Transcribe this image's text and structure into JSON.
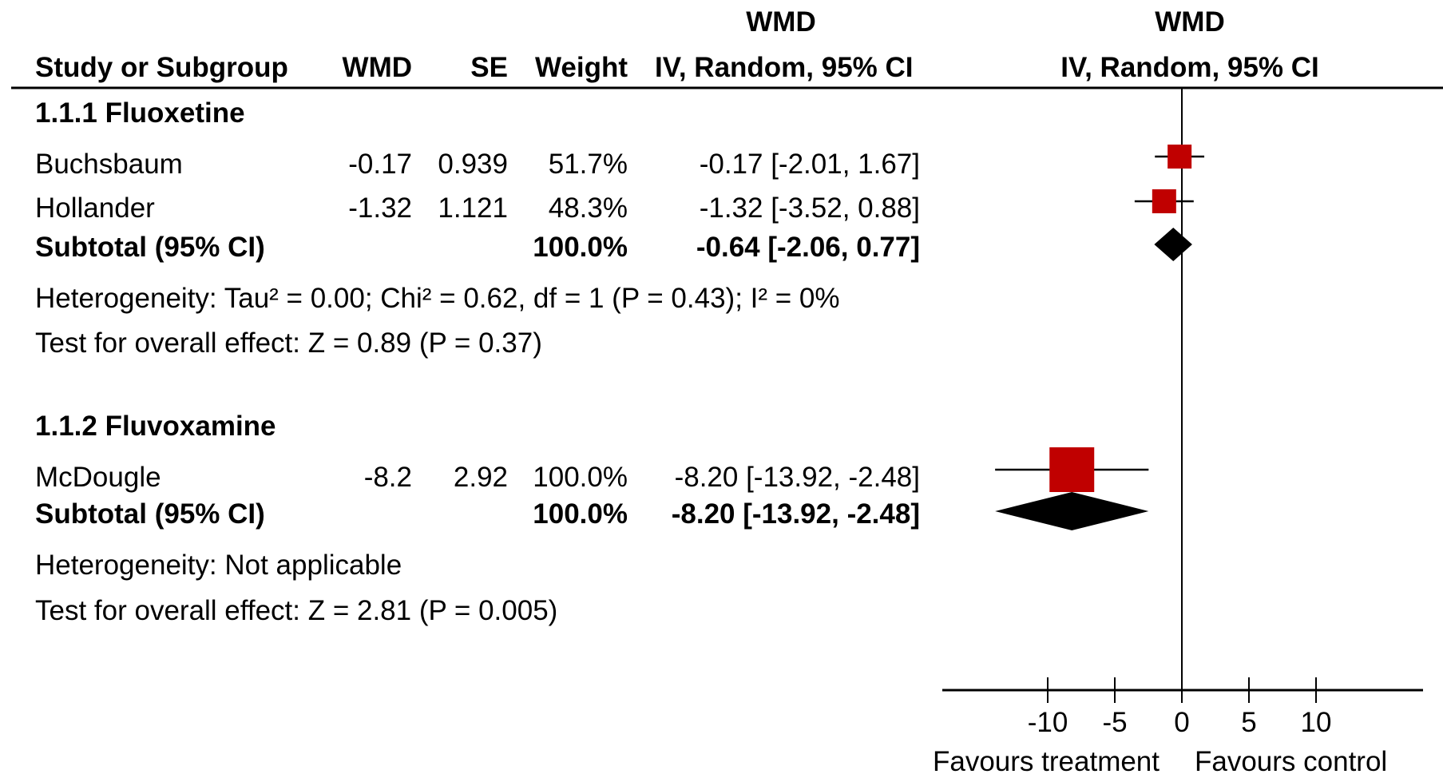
{
  "header": {
    "col_study": "Study or Subgroup",
    "col_wmd": "WMD",
    "col_se": "SE",
    "col_weight": "Weight",
    "col_ci_top": "WMD",
    "col_ci_bottom": "IV, Random, 95% CI",
    "plot_top": "WMD",
    "plot_bottom": "IV, Random, 95% CI"
  },
  "subgroups": [
    {
      "title": "1.1.1 Fluoxetine",
      "studies": [
        {
          "name": "Buchsbaum",
          "wmd": "-0.17",
          "se": "0.939",
          "weight": "51.7%",
          "ci": "-0.17 [-2.01, 1.67]"
        },
        {
          "name": "Hollander",
          "wmd": "-1.32",
          "se": "1.121",
          "weight": "48.3%",
          "ci": "-1.32 [-3.52, 0.88]"
        }
      ],
      "subtotal": {
        "label": "Subtotal (95% CI)",
        "weight": "100.0%",
        "ci": "-0.64 [-2.06, 0.77]"
      },
      "heterogeneity": "Heterogeneity: Tau² = 0.00; Chi² = 0.62, df = 1 (P = 0.43); I² = 0%",
      "overall": "Test for overall effect: Z = 0.89 (P = 0.37)"
    },
    {
      "title": "1.1.2 Fluvoxamine",
      "studies": [
        {
          "name": "McDougle",
          "wmd": "-8.2",
          "se": "2.92",
          "weight": "100.0%",
          "ci": "-8.20 [-13.92, -2.48]"
        }
      ],
      "subtotal": {
        "label": "Subtotal (95% CI)",
        "weight": "100.0%",
        "ci": "-8.20 [-13.92, -2.48]"
      },
      "heterogeneity": "Heterogeneity: Not applicable",
      "overall": "Test for overall effect: Z = 2.81 (P = 0.005)"
    }
  ],
  "axis": {
    "favours_left": "Favours treatment",
    "favours_right": "Favours control"
  },
  "colors": {
    "study_marker": "#c00000",
    "summary_marker": "#000000"
  },
  "chart_data": {
    "type": "forest",
    "xlim": [
      -18,
      18
    ],
    "xticks": [
      -10,
      -5,
      0,
      5,
      10
    ],
    "grid": false,
    "studies": [
      {
        "name": "Buchsbaum",
        "subgroup": "1.1.1 Fluoxetine",
        "estimate": -0.17,
        "lower": -2.01,
        "upper": 1.67,
        "weight": 51.7
      },
      {
        "name": "Hollander",
        "subgroup": "1.1.1 Fluoxetine",
        "estimate": -1.32,
        "lower": -3.52,
        "upper": 0.88,
        "weight": 48.3
      },
      {
        "name": "McDougle",
        "subgroup": "1.1.2 Fluvoxamine",
        "estimate": -8.2,
        "lower": -13.92,
        "upper": -2.48,
        "weight": 100.0
      }
    ],
    "subtotals": [
      {
        "subgroup": "1.1.1 Fluoxetine",
        "estimate": -0.64,
        "lower": -2.06,
        "upper": 0.77
      },
      {
        "subgroup": "1.1.2 Fluvoxamine",
        "estimate": -8.2,
        "lower": -13.92,
        "upper": -2.48
      }
    ]
  }
}
